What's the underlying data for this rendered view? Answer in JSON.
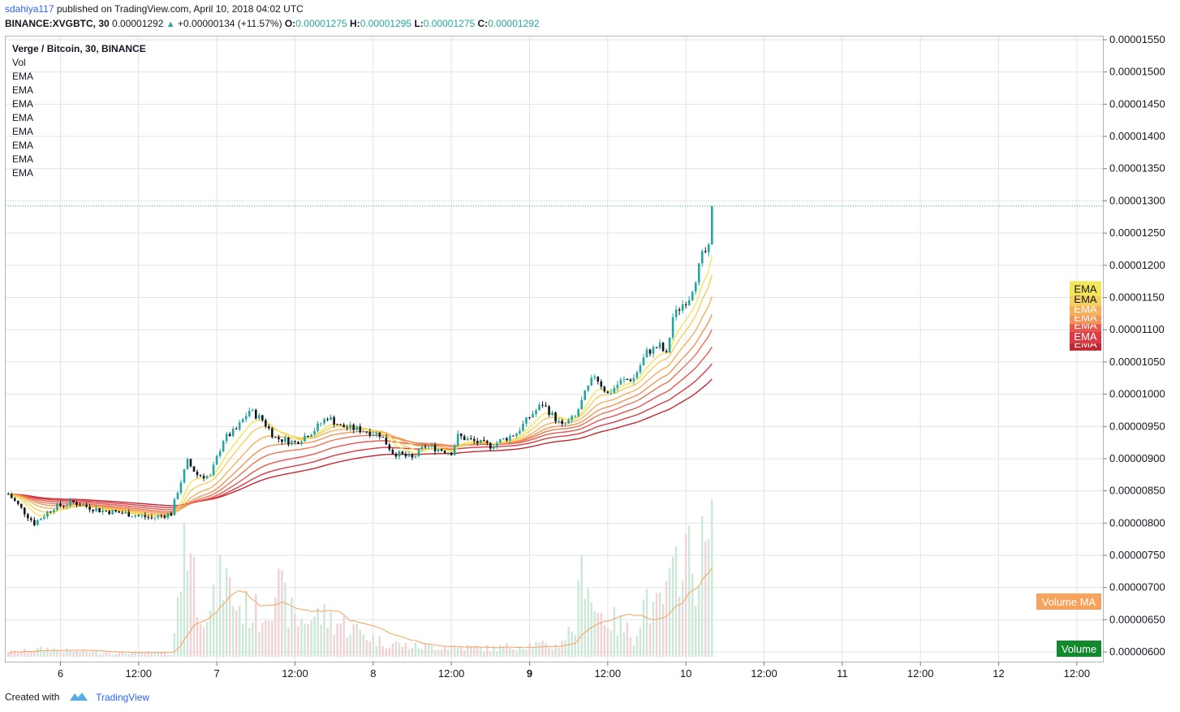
{
  "header": {
    "user": "sdahiya117",
    "published_text": "published on TradingView.com, April 10, 2018 04:02 UTC",
    "symbol_line": "BINANCE:XVGBTC, 30",
    "last": "0.00001292",
    "change": "+0.00000134 (+11.57%)",
    "o_label": "O:",
    "o_value": "0.00001275",
    "h_label": "H:",
    "h_value": "0.00001295",
    "l_label": "L:",
    "l_value": "0.00001275",
    "c_label": "C:",
    "c_value": "0.00001292"
  },
  "legend": {
    "title": "Verge / Bitcoin, 30, BINANCE",
    "vol": "Vol",
    "ema_labels": [
      "EMA",
      "EMA",
      "EMA",
      "EMA",
      "EMA",
      "EMA",
      "EMA",
      "EMA"
    ]
  },
  "footer": {
    "created": "Created with",
    "brand": "TradingView"
  },
  "colors": {
    "up": "#26a69a",
    "down": "#131722",
    "grid": "#e1e3ea",
    "vol_up": "#cde8d6",
    "vol_down": "#f0d2d7",
    "vol_ma": "#f7a35c",
    "ema": [
      "#f3e65a",
      "#f6cf5c",
      "#f4b15a",
      "#f29357",
      "#ee7453",
      "#e8574e",
      "#db3b45",
      "#c0282f"
    ]
  },
  "chart_data": {
    "type": "candlestick",
    "y_ticks": [
      "0.00001550",
      "0.00001500",
      "0.00001450",
      "0.00001400",
      "0.00001350",
      "0.00001300",
      "0.00001250",
      "0.00001200",
      "0.00001150",
      "0.00001100",
      "0.00001050",
      "0.00001000",
      "0.00000950",
      "0.00000900",
      "0.00000850",
      "0.00000800",
      "0.00000750",
      "0.00000700",
      "0.00000650",
      "0.00000600"
    ],
    "ylim": [
      5.85e-06,
      1.555e-05
    ],
    "x_ticks": [
      {
        "label": "6",
        "bold": false,
        "hour": 24
      },
      {
        "label": "12:00",
        "bold": false,
        "hour": 36
      },
      {
        "label": "7",
        "bold": false,
        "hour": 48
      },
      {
        "label": "12:00",
        "bold": false,
        "hour": 60
      },
      {
        "label": "8",
        "bold": false,
        "hour": 72
      },
      {
        "label": "12:00",
        "bold": false,
        "hour": 84
      },
      {
        "label": "9",
        "bold": true,
        "hour": 96
      },
      {
        "label": "12:00",
        "bold": false,
        "hour": 108
      },
      {
        "label": "10",
        "bold": false,
        "hour": 120
      },
      {
        "label": "12:00",
        "bold": false,
        "hour": 132
      },
      {
        "label": "11",
        "bold": false,
        "hour": 144
      },
      {
        "label": "12:00",
        "bold": false,
        "hour": 156
      },
      {
        "label": "12",
        "bold": false,
        "hour": 168
      },
      {
        "label": "12:00",
        "bold": false,
        "hour": 180
      }
    ],
    "x_range_hours": [
      15.6,
      184
    ],
    "last_price": 1.292e-05,
    "price_anchors": [
      [
        16,
        8.45e-06
      ],
      [
        20,
        8e-06
      ],
      [
        23,
        8.25e-06
      ],
      [
        26,
        8.32e-06
      ],
      [
        30,
        8.2e-06
      ],
      [
        34,
        8.15e-06
      ],
      [
        38,
        8.08e-06
      ],
      [
        41,
        8.15e-06
      ],
      [
        42,
        8.5e-06
      ],
      [
        43.5,
        8.95e-06
      ],
      [
        45,
        8.75e-06
      ],
      [
        47,
        8.72e-06
      ],
      [
        49,
        9.3e-06
      ],
      [
        51,
        9.45e-06
      ],
      [
        53,
        9.75e-06
      ],
      [
        55,
        9.6e-06
      ],
      [
        57,
        9.32e-06
      ],
      [
        60,
        9.25e-06
      ],
      [
        63,
        9.45e-06
      ],
      [
        65,
        9.65e-06
      ],
      [
        67,
        9.5e-06
      ],
      [
        70,
        9.45e-06
      ],
      [
        73,
        9.38e-06
      ],
      [
        75,
        9.1e-06
      ],
      [
        78,
        9e-06
      ],
      [
        80,
        9.2e-06
      ],
      [
        84,
        9.1e-06
      ],
      [
        85,
        9.35e-06
      ],
      [
        88,
        9.25e-06
      ],
      [
        90,
        9.2e-06
      ],
      [
        94,
        9.4e-06
      ],
      [
        96,
        9.65e-06
      ],
      [
        98,
        9.85e-06
      ],
      [
        101,
        9.5e-06
      ],
      [
        103,
        9.65e-06
      ],
      [
        104.5,
        1e-05
      ],
      [
        106,
        1.03e-05
      ],
      [
        108,
        1e-05
      ],
      [
        110,
        1.02e-05
      ],
      [
        112,
        1.025e-05
      ],
      [
        114,
        1.065e-05
      ],
      [
        116,
        1.075e-05
      ],
      [
        117,
        1.06e-05
      ],
      [
        118,
        1.12e-05
      ],
      [
        119.5,
        1.14e-05
      ],
      [
        120.5,
        1.15e-05
      ],
      [
        121.5,
        1.18e-05
      ],
      [
        122.5,
        1.215e-05
      ],
      [
        123.5,
        1.225e-05
      ],
      [
        124,
        1.292e-05
      ]
    ],
    "volume_anchors": [
      [
        16,
        0.004
      ],
      [
        22,
        0.008
      ],
      [
        26,
        0.005
      ],
      [
        32,
        0.004
      ],
      [
        38,
        0.004
      ],
      [
        41,
        0.003
      ],
      [
        42.5,
        0.07
      ],
      [
        43,
        0.14
      ],
      [
        45,
        0.06
      ],
      [
        47,
        0.04
      ],
      [
        49,
        0.08
      ],
      [
        51,
        0.05
      ],
      [
        55,
        0.04
      ],
      [
        57,
        0.07
      ],
      [
        60,
        0.035
      ],
      [
        64,
        0.04
      ],
      [
        68,
        0.03
      ],
      [
        73,
        0.015
      ],
      [
        78,
        0.01
      ],
      [
        84,
        0.01
      ],
      [
        90,
        0.008
      ],
      [
        96,
        0.012
      ],
      [
        100,
        0.01
      ],
      [
        103,
        0.03
      ],
      [
        104.5,
        0.1
      ],
      [
        106,
        0.045
      ],
      [
        110,
        0.03
      ],
      [
        112,
        0.02
      ],
      [
        114,
        0.06
      ],
      [
        115,
        0.04
      ],
      [
        116,
        0.05
      ],
      [
        118,
        0.07
      ],
      [
        119.5,
        0.12
      ],
      [
        121,
        0.08
      ],
      [
        122.5,
        0.1
      ],
      [
        124,
        0.11
      ]
    ],
    "volume_scale_max": 0.165,
    "ema_periods": [
      8,
      13,
      21,
      30,
      40,
      55,
      75,
      100
    ],
    "right_badges": [
      {
        "text": "EMA",
        "price": 1.164e-05,
        "color_index": 0
      },
      {
        "text": "EMA",
        "price": 1.148e-05,
        "color_index": 1
      },
      {
        "text": "EMA",
        "price": 1.133e-05,
        "color_index": 2
      },
      {
        "text": "EMA",
        "price": 1.12e-05,
        "color_index": 3
      },
      {
        "text": "EMA",
        "price": 1.108e-05,
        "color_index": 5
      },
      {
        "text": "EMA",
        "price": 1.09e-05,
        "color_index": 6
      },
      {
        "text": "EMA",
        "price": 1.079e-05,
        "color_index": 7
      }
    ],
    "volume_ma_badge": "Volume MA",
    "volume_badge": "Volume"
  }
}
